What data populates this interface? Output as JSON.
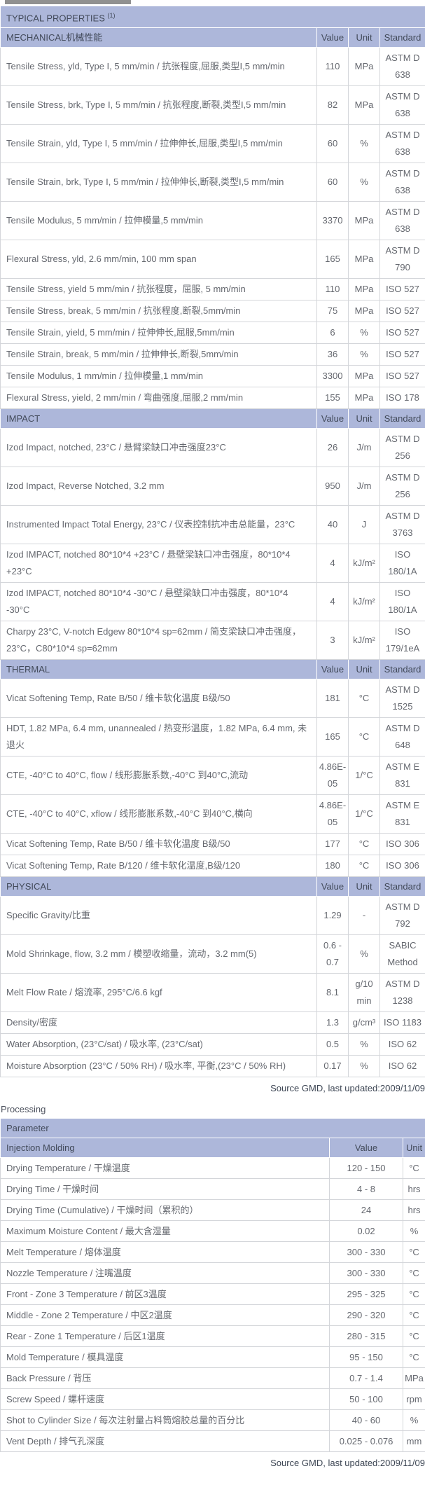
{
  "colors": {
    "section_header_bg": "#adb7da",
    "header_text": "#424a5a",
    "body_text": "#65686f",
    "grid_line": "#d4d6da",
    "outer_border": "#55575c"
  },
  "typical": {
    "title": "TYPICAL PROPERTIES ",
    "title_sup": "(1)",
    "rows": [
      {
        "type": "header",
        "name": "MECHANICAL机械性能",
        "value": "Value",
        "unit": "Unit",
        "standard": "Standard"
      },
      {
        "type": "data",
        "name": "Tensile Stress, yld, Type I, 5 mm/min / 抗张程度,屈服,类型I,5 mm/min",
        "value": "110",
        "unit": "MPa",
        "standard": "ASTM D 638"
      },
      {
        "type": "data",
        "name": "Tensile Stress, brk, Type I, 5 mm/min / 抗张程度,断裂,类型I,5 mm/min",
        "value": "82",
        "unit": "MPa",
        "standard": "ASTM D 638"
      },
      {
        "type": "data",
        "name": "Tensile Strain, yld, Type I, 5 mm/min / 拉伸伸长,屈服,类型I,5 mm/min",
        "value": "60",
        "unit": "%",
        "standard": "ASTM D 638"
      },
      {
        "type": "data",
        "name": "Tensile Strain, brk, Type I, 5 mm/min / 拉伸伸长,断裂,类型I,5 mm/min",
        "value": "60",
        "unit": "%",
        "standard": "ASTM D 638"
      },
      {
        "type": "data",
        "name": "Tensile Modulus, 5 mm/min / 拉伸模量,5 mm/min",
        "value": "3370",
        "unit": "MPa",
        "standard": "ASTM D 638"
      },
      {
        "type": "data",
        "name": "Flexural Stress, yld, 2.6 mm/min, 100 mm span",
        "value": "165",
        "unit": "MPa",
        "standard": "ASTM D 790"
      },
      {
        "type": "data",
        "name": "Tensile Stress, yield 5 mm/min / 抗张程度，屈服, 5 mm/min",
        "value": "110",
        "unit": "MPa",
        "standard": "ISO 527"
      },
      {
        "type": "data",
        "name": "Tensile Stress, break, 5 mm/min / 抗张程度,断裂,5mm/min",
        "value": "75",
        "unit": "MPa",
        "standard": "ISO 527"
      },
      {
        "type": "data",
        "name": "Tensile Strain, yield, 5 mm/min / 拉伸伸长,屈服,5mm/min",
        "value": "6",
        "unit": "%",
        "standard": "ISO 527"
      },
      {
        "type": "data",
        "name": "Tensile Strain, break, 5 mm/min / 拉伸伸长,断裂,5mm/min",
        "value": "36",
        "unit": "%",
        "standard": "ISO 527"
      },
      {
        "type": "data",
        "name": "Tensile Modulus, 1 mm/min / 拉伸模量,1 mm/min",
        "value": "3300",
        "unit": "MPa",
        "standard": "ISO 527"
      },
      {
        "type": "data",
        "name": "Flexural Stress, yield, 2 mm/min / 弯曲强度,屈服,2 mm/min",
        "value": "155",
        "unit": "MPa",
        "standard": "ISO 178"
      },
      {
        "type": "header",
        "name": "IMPACT",
        "value": "Value",
        "unit": "Unit",
        "standard": "Standard"
      },
      {
        "type": "data",
        "name": "Izod Impact, notched, 23°C / 悬臂梁缺口冲击强度23°C",
        "value": "26",
        "unit": "J/m",
        "standard": "ASTM D 256"
      },
      {
        "type": "data",
        "name": "Izod Impact, Reverse Notched, 3.2 mm",
        "value": "950",
        "unit": "J/m",
        "standard": "ASTM D 256"
      },
      {
        "type": "data",
        "name": "Instrumented Impact Total Energy, 23°C / 仪表控制抗冲击总能量，23°C",
        "value": "40",
        "unit": "J",
        "standard": "ASTM D 3763"
      },
      {
        "type": "data",
        "name": "Izod IMPACT, notched 80*10*4 +23°C / 悬壁梁缺口冲击强度，80*10*4 +23°C",
        "value": "4",
        "unit": "kJ/m²",
        "standard": "ISO 180/1A"
      },
      {
        "type": "data",
        "name": "Izod IMPACT, notched 80*10*4 -30°C / 悬壁梁缺口冲击强度，80*10*4 -30°C",
        "value": "4",
        "unit": "kJ/m²",
        "standard": "ISO 180/1A"
      },
      {
        "type": "data",
        "name": "Charpy 23°C, V-notch Edgew 80*10*4 sp=62mm / 简支梁缺口冲击强度，23°C，C80*10*4 sp=62mm",
        "value": "3",
        "unit": "kJ/m²",
        "standard": "ISO 179/1eA"
      },
      {
        "type": "header",
        "name": "THERMAL",
        "value": "Value",
        "unit": "Unit",
        "standard": "Standard"
      },
      {
        "type": "data",
        "name": "Vicat Softening Temp, Rate B/50 / 维卡软化温度 B级/50",
        "value": "181",
        "unit": "°C",
        "standard": "ASTM D 1525"
      },
      {
        "type": "data",
        "name": "HDT, 1.82 MPa, 6.4 mm, unannealed / 热变形温度，1.82 MPa, 6.4 mm, 未退火",
        "value": "165",
        "unit": "°C",
        "standard": "ASTM D 648"
      },
      {
        "type": "data",
        "name": "CTE, -40°C to 40°C, flow / 线形膨胀系数,-40°C 到40°C,流动",
        "value": "4.86E-05",
        "unit": "1/°C",
        "standard": "ASTM E 831"
      },
      {
        "type": "data",
        "name": "CTE, -40°C to 40°C, xflow / 线形膨胀系数,-40°C 到40°C,横向",
        "value": "4.86E-05",
        "unit": "1/°C",
        "standard": "ASTM E 831"
      },
      {
        "type": "data",
        "name": "Vicat Softening Temp, Rate B/50 / 维卡软化温度 B级/50",
        "value": "177",
        "unit": "°C",
        "standard": "ISO 306"
      },
      {
        "type": "data",
        "name": "Vicat Softening Temp, Rate B/120 / 维卡软化温度,B级/120",
        "value": "180",
        "unit": "°C",
        "standard": "ISO 306"
      },
      {
        "type": "header",
        "name": "PHYSICAL",
        "value": "Value",
        "unit": "Unit",
        "standard": "Standard"
      },
      {
        "type": "data",
        "name": "Specific Gravity/比重",
        "value": "1.29",
        "unit": "-",
        "standard": "ASTM D 792"
      },
      {
        "type": "data",
        "name": "Mold Shrinkage, flow, 3.2 mm / 模塑收缩量，流动，3.2 mm(5)",
        "value": "0.6 - 0.7",
        "unit": "%",
        "standard": "SABIC Method"
      },
      {
        "type": "data",
        "name": "Melt Flow Rate / 熔流率, 295°C/6.6 kgf",
        "value": "8.1",
        "unit": "g/10 min",
        "standard": "ASTM D 1238"
      },
      {
        "type": "data",
        "name": "Density/密度",
        "value": "1.3",
        "unit": "g/cm³",
        "standard": "ISO 1183"
      },
      {
        "type": "data",
        "name": "Water Absorption, (23°C/sat) / 吸水率, (23°C/sat)",
        "value": "0.5",
        "unit": "%",
        "standard": "ISO 62"
      },
      {
        "type": "data",
        "name": "Moisture Absorption (23°C / 50% RH) / 吸水率, 平衡,(23°C / 50% RH)",
        "value": "0.17",
        "unit": "%",
        "standard": "ISO 62"
      }
    ]
  },
  "source_note_top": "Source GMD, last updated:2009/11/09",
  "processing": {
    "heading": "Processing",
    "table_header": "Parameter",
    "subheader": {
      "name": "Injection Molding",
      "value": "Value",
      "unit": "Unit"
    },
    "rows": [
      {
        "name": "Drying Temperature / 干燥温度",
        "value": "120 - 150",
        "unit": "°C"
      },
      {
        "name": "Drying Time / 干燥时间",
        "value": "4 - 8",
        "unit": "hrs"
      },
      {
        "name": "Drying Time (Cumulative) / 干燥时间（累积的）",
        "value": "24",
        "unit": "hrs"
      },
      {
        "name": "Maximum Moisture Content / 最大含湿量",
        "value": "0.02",
        "unit": "%"
      },
      {
        "name": "Melt Temperature / 熔体温度",
        "value": "300 - 330",
        "unit": "°C"
      },
      {
        "name": "Nozzle Temperature / 注嘴温度",
        "value": "300 - 330",
        "unit": "°C"
      },
      {
        "name": "Front - Zone 3 Temperature / 前区3温度",
        "value": "295 - 325",
        "unit": "°C"
      },
      {
        "name": "Middle - Zone 2 Temperature / 中区2温度",
        "value": "290 - 320",
        "unit": "°C"
      },
      {
        "name": "Rear - Zone 1 Temperature / 后区1温度",
        "value": "280 - 315",
        "unit": "°C"
      },
      {
        "name": "Mold Temperature / 模具温度",
        "value": "95 - 150",
        "unit": "°C"
      },
      {
        "name": "Back Pressure / 背压",
        "value": "0.7 - 1.4",
        "unit": "MPa"
      },
      {
        "name": "Screw Speed / 螺杆速度",
        "value": "50 - 100",
        "unit": "rpm"
      },
      {
        "name": "Shot to Cylinder Size / 每次注射量占料筒熔胶总量的百分比",
        "value": "40 - 60",
        "unit": "%"
      },
      {
        "name": "Vent Depth / 排气孔深度",
        "value": "0.025 - 0.076",
        "unit": "mm"
      }
    ]
  },
  "source_note_bottom": "Source GMD, last updated:2009/11/09"
}
